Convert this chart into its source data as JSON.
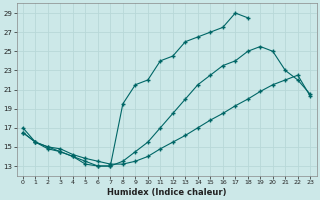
{
  "xlabel": "Humidex (Indice chaleur)",
  "bg_color": "#cce8e8",
  "line_color": "#006666",
  "grid_color": "#b8d8d8",
  "xlim": [
    -0.5,
    23.5
  ],
  "ylim": [
    12.0,
    30.0
  ],
  "xticks": [
    0,
    1,
    2,
    3,
    4,
    5,
    6,
    7,
    8,
    9,
    10,
    11,
    12,
    13,
    14,
    15,
    16,
    17,
    18,
    19,
    20,
    21,
    22,
    23
  ],
  "yticks": [
    13,
    15,
    17,
    19,
    21,
    23,
    25,
    27,
    29
  ],
  "line1_x": [
    0,
    1,
    2,
    3,
    4,
    5,
    6,
    7,
    8,
    9,
    10,
    11,
    12,
    13,
    14,
    15,
    16,
    17,
    18
  ],
  "line1_y": [
    16.5,
    15.5,
    14.8,
    14.5,
    14.0,
    13.2,
    13.0,
    13.0,
    19.5,
    21.5,
    22.0,
    24.0,
    24.5,
    26.0,
    26.5,
    27.0,
    27.5,
    29.0,
    28.5
  ],
  "line2_x": [
    0,
    1,
    2,
    3,
    4,
    5,
    6,
    7,
    8,
    9,
    10,
    11,
    12,
    13,
    14,
    15,
    16,
    17,
    18,
    19,
    20,
    21,
    22,
    23
  ],
  "line2_y": [
    17.0,
    15.5,
    15.0,
    14.5,
    14.0,
    13.5,
    13.0,
    13.0,
    13.5,
    14.5,
    15.5,
    17.0,
    18.5,
    20.0,
    21.5,
    22.5,
    23.5,
    24.0,
    25.0,
    25.5,
    25.0,
    23.0,
    22.0,
    20.5
  ],
  "line3_x": [
    0,
    1,
    2,
    3,
    4,
    5,
    6,
    7,
    8,
    9,
    10,
    11,
    12,
    13,
    14,
    15,
    16,
    17,
    18,
    19,
    20,
    21,
    22,
    23
  ],
  "line3_y": [
    16.5,
    15.5,
    15.0,
    14.8,
    14.2,
    13.8,
    13.5,
    13.2,
    13.2,
    13.5,
    14.0,
    14.8,
    15.5,
    16.2,
    17.0,
    17.8,
    18.5,
    19.3,
    20.0,
    20.8,
    21.5,
    22.0,
    22.5,
    20.3
  ]
}
